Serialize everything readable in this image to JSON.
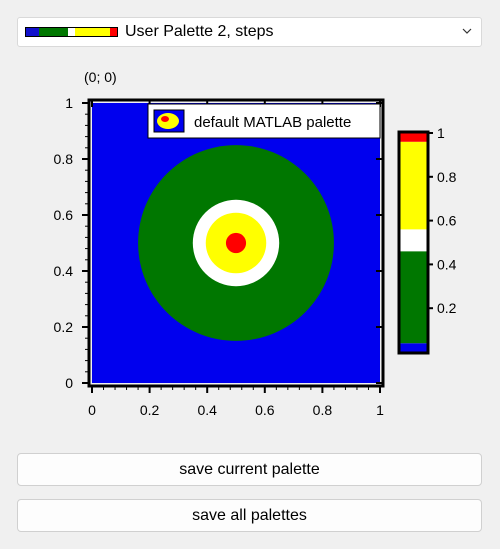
{
  "palette_selector": {
    "selected": "User Palette 2, steps",
    "swatch": [
      "#1111cc",
      "#007700",
      "#ffffff",
      "#ffff00",
      "#ff0000"
    ],
    "icon": "chevron-down-icon"
  },
  "plot": {
    "corner_label": "(0; 0)",
    "legend_text": "default MATLAB palette",
    "legend_icon": "matlab-palette-icon",
    "x_ticks": [
      "0",
      "0.2",
      "0.4",
      "0.6",
      "0.8",
      "1"
    ],
    "y_ticks": [
      "0",
      "0.2",
      "0.4",
      "0.6",
      "0.8",
      "1"
    ],
    "colorbar_ticks": [
      "0.2",
      "0.4",
      "0.6",
      "0.8",
      "1"
    ],
    "colors": {
      "blue": "#0000ee",
      "green": "#007700",
      "white": "#ffffff",
      "yellow": "#ffff00",
      "red": "#ff0000"
    }
  },
  "chart_data": {
    "type": "heatmap",
    "title": "",
    "xlabel": "",
    "ylabel": "",
    "xlim": [
      0,
      1
    ],
    "ylim": [
      0,
      1
    ],
    "legend": [
      "default MATLAB palette"
    ],
    "legend_position": "top-right",
    "description_values": {
      "center": [
        0.5,
        0.5
      ],
      "levels": [
        {
          "radius": 0.035,
          "color": "red"
        },
        {
          "radius": 0.105,
          "color": "yellow"
        },
        {
          "radius": 0.15,
          "color": "white"
        },
        {
          "radius": 0.34,
          "color": "green"
        }
      ],
      "background_color": "blue"
    },
    "colorbar": {
      "range": [
        0,
        1
      ],
      "ticks": [
        0.2,
        0.4,
        0.6,
        0.8,
        1.0
      ],
      "bands": [
        {
          "from": 0.0,
          "to": 0.04,
          "color": "blue"
        },
        {
          "from": 0.04,
          "to": 0.46,
          "color": "green"
        },
        {
          "from": 0.46,
          "to": 0.56,
          "color": "white"
        },
        {
          "from": 0.56,
          "to": 0.96,
          "color": "yellow"
        },
        {
          "from": 0.96,
          "to": 1.0,
          "color": "red"
        }
      ]
    }
  },
  "buttons": {
    "save_current": "save current palette",
    "save_all": "save all palettes"
  }
}
